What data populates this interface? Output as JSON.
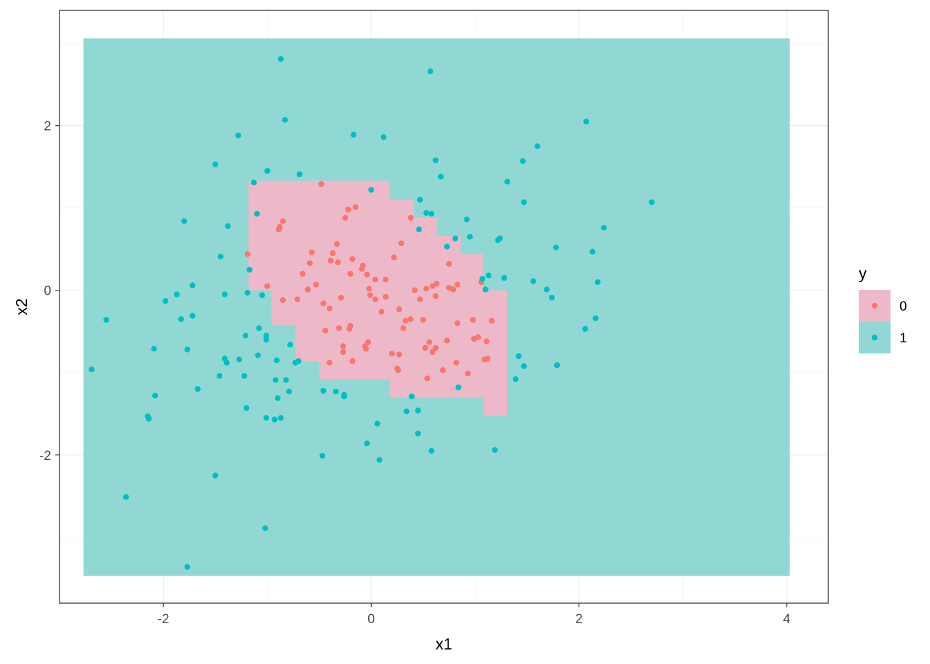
{
  "chart_data": {
    "type": "scatter",
    "title": "",
    "xlabel": "x1",
    "ylabel": "x2",
    "xlim": [
      -3.0,
      4.4
    ],
    "ylim": [
      -3.8,
      3.4
    ],
    "x_ticks": [
      -2,
      0,
      2,
      4
    ],
    "y_ticks": [
      -2,
      0,
      2
    ],
    "x_tick_labels": [
      "-2",
      "0",
      "2",
      "4"
    ],
    "y_tick_labels": [
      "-2",
      "0",
      "2"
    ],
    "grid": true,
    "legend": {
      "title": "y",
      "position": "right",
      "entries": [
        {
          "label": "0",
          "point_color": "#F8766D",
          "fill_color": "#EDB8C8"
        },
        {
          "label": "1",
          "point_color": "#00BFC4",
          "fill_color": "#91D8D4"
        }
      ]
    },
    "background_region": {
      "class": "1",
      "x": [
        -2.77,
        4.03
      ],
      "y": [
        -3.47,
        3.06
      ],
      "color": "#91D8D4"
    },
    "decision_region_class0": {
      "class": "0",
      "color": "#EDB8C8",
      "boundary": [
        [
          -1.18,
          1.33
        ],
        [
          0.18,
          1.33
        ],
        [
          0.18,
          1.1
        ],
        [
          0.41,
          1.1
        ],
        [
          0.41,
          0.88
        ],
        [
          0.63,
          0.88
        ],
        [
          0.63,
          0.66
        ],
        [
          0.86,
          0.66
        ],
        [
          0.86,
          0.44
        ],
        [
          1.08,
          0.44
        ],
        [
          1.08,
          0.0
        ],
        [
          1.31,
          0.0
        ],
        [
          1.31,
          -1.52
        ],
        [
          1.08,
          -1.52
        ],
        [
          1.08,
          -1.3
        ],
        [
          0.18,
          -1.3
        ],
        [
          0.18,
          -1.08
        ],
        [
          -0.5,
          -1.08
        ],
        [
          -0.5,
          -0.86
        ],
        [
          -0.73,
          -0.86
        ],
        [
          -0.73,
          -0.42
        ],
        [
          -0.96,
          -0.42
        ],
        [
          -0.96,
          0.0
        ],
        [
          -1.18,
          0.0
        ]
      ]
    },
    "series": [
      {
        "name": "0",
        "color": "#F8766D",
        "points": [
          [
            -0.48,
            1.29
          ],
          [
            -0.85,
            0.84
          ],
          [
            -0.88,
            0.77
          ],
          [
            -0.89,
            0.74
          ],
          [
            -0.22,
            0.98
          ],
          [
            -0.15,
            1.01
          ],
          [
            -0.25,
            0.88
          ],
          [
            0.38,
            0.88
          ],
          [
            -0.33,
            0.56
          ],
          [
            0.29,
            0.57
          ],
          [
            -1.19,
            0.44
          ],
          [
            -0.57,
            0.46
          ],
          [
            -0.37,
            0.45
          ],
          [
            -0.59,
            0.33
          ],
          [
            -0.39,
            0.36
          ],
          [
            -0.32,
            0.34
          ],
          [
            -0.18,
            0.38
          ],
          [
            0.22,
            0.4
          ],
          [
            -0.08,
            0.3
          ],
          [
            -0.09,
            0.26
          ],
          [
            -0.2,
            0.2
          ],
          [
            -0.66,
            0.2
          ],
          [
            -0.04,
            0.19
          ],
          [
            0.75,
            0.32
          ],
          [
            -0.53,
            0.07
          ],
          [
            -0.61,
            0.01
          ],
          [
            -1.0,
            0.05
          ],
          [
            -0.02,
            0.02
          ],
          [
            0.04,
            0.13
          ],
          [
            0.14,
            0.13
          ],
          [
            0.42,
            0.0
          ],
          [
            0.53,
            0.02
          ],
          [
            0.59,
            0.05
          ],
          [
            0.63,
            0.08
          ],
          [
            0.75,
            0.03
          ],
          [
            0.79,
            0.01
          ],
          [
            0.83,
            0.07
          ],
          [
            -0.01,
            -0.06
          ],
          [
            0.04,
            -0.11
          ],
          [
            0.14,
            -0.08
          ],
          [
            0.47,
            -0.11
          ],
          [
            0.62,
            -0.07
          ],
          [
            -0.71,
            -0.11
          ],
          [
            -0.85,
            -0.12
          ],
          [
            -0.29,
            -0.09
          ],
          [
            -0.46,
            -0.16
          ],
          [
            -0.4,
            -0.22
          ],
          [
            0.27,
            -0.23
          ],
          [
            0.1,
            -0.26
          ],
          [
            -0.2,
            -0.43
          ],
          [
            -0.21,
            -0.47
          ],
          [
            -0.44,
            -0.49
          ],
          [
            -0.31,
            -0.46
          ],
          [
            0.33,
            -0.37
          ],
          [
            0.38,
            -0.35
          ],
          [
            0.5,
            -0.36
          ],
          [
            0.31,
            -0.46
          ],
          [
            0.83,
            -0.4
          ],
          [
            0.98,
            -0.36
          ],
          [
            1.16,
            -0.37
          ],
          [
            0.56,
            -0.63
          ],
          [
            0.73,
            -0.61
          ],
          [
            0.99,
            -0.59
          ],
          [
            1.03,
            -0.57
          ],
          [
            1.11,
            -0.62
          ],
          [
            -0.03,
            -0.63
          ],
          [
            -0.06,
            -0.68
          ],
          [
            -0.27,
            -0.68
          ],
          [
            -0.05,
            -0.71
          ],
          [
            0.52,
            -0.7
          ],
          [
            0.59,
            -0.75
          ],
          [
            0.62,
            -0.7
          ],
          [
            -0.27,
            -0.75
          ],
          [
            0.2,
            -0.77
          ],
          [
            0.27,
            -0.78
          ],
          [
            -0.18,
            -0.86
          ],
          [
            -0.4,
            -0.88
          ],
          [
            1.12,
            -0.83
          ],
          [
            1.09,
            -0.84
          ],
          [
            0.82,
            -0.88
          ],
          [
            0.25,
            -0.95
          ],
          [
            0.26,
            -0.97
          ],
          [
            0.69,
            -0.97
          ],
          [
            0.93,
            -1.01
          ],
          [
            0.54,
            -1.07
          ],
          [
            1.06,
            0.1
          ]
        ]
      },
      {
        "name": "1",
        "color": "#00BFC4",
        "points": [
          [
            -0.87,
            2.81
          ],
          [
            0.57,
            2.66
          ],
          [
            -0.83,
            2.07
          ],
          [
            2.07,
            2.05
          ],
          [
            -1.28,
            1.88
          ],
          [
            -0.17,
            1.89
          ],
          [
            0.12,
            1.86
          ],
          [
            1.6,
            1.75
          ],
          [
            -1.5,
            1.53
          ],
          [
            -1.0,
            1.45
          ],
          [
            0.62,
            1.58
          ],
          [
            1.46,
            1.57
          ],
          [
            -0.69,
            1.41
          ],
          [
            0.67,
            1.38
          ],
          [
            -1.13,
            1.31
          ],
          [
            1.31,
            1.32
          ],
          [
            0.0,
            1.22
          ],
          [
            0.47,
            1.1
          ],
          [
            1.47,
            1.07
          ],
          [
            2.7,
            1.07
          ],
          [
            -1.1,
            0.93
          ],
          [
            0.53,
            0.94
          ],
          [
            0.58,
            0.93
          ],
          [
            -1.8,
            0.84
          ],
          [
            -1.38,
            0.78
          ],
          [
            0.92,
            0.86
          ],
          [
            2.24,
            0.76
          ],
          [
            0.46,
            0.74
          ],
          [
            1.24,
            0.63
          ],
          [
            1.22,
            0.61
          ],
          [
            0.81,
            0.63
          ],
          [
            0.95,
            0.65
          ],
          [
            0.73,
            0.53
          ],
          [
            1.78,
            0.52
          ],
          [
            2.13,
            0.47
          ],
          [
            -1.45,
            0.41
          ],
          [
            -1.17,
            0.25
          ],
          [
            1.07,
            0.14
          ],
          [
            1.13,
            0.18
          ],
          [
            1.28,
            0.15
          ],
          [
            1.56,
            0.11
          ],
          [
            2.18,
            0.1
          ],
          [
            -1.72,
            0.06
          ],
          [
            1.69,
            0.01
          ],
          [
            1.1,
            0.01
          ],
          [
            -1.87,
            -0.05
          ],
          [
            -1.41,
            -0.05
          ],
          [
            -1.19,
            -0.03
          ],
          [
            -1.05,
            -0.06
          ],
          [
            -1.98,
            -0.13
          ],
          [
            1.74,
            -0.09
          ],
          [
            -1.83,
            -0.35
          ],
          [
            -1.72,
            -0.31
          ],
          [
            2.16,
            -0.34
          ],
          [
            -2.55,
            -0.36
          ],
          [
            -1.08,
            -0.46
          ],
          [
            2.06,
            -0.47
          ],
          [
            -1.21,
            -0.55
          ],
          [
            -1.01,
            -0.55
          ],
          [
            -1.01,
            -0.6
          ],
          [
            -0.78,
            -0.66
          ],
          [
            -2.09,
            -0.71
          ],
          [
            -1.77,
            -0.72
          ],
          [
            -1.09,
            -0.79
          ],
          [
            1.42,
            -0.8
          ],
          [
            -1.41,
            -0.83
          ],
          [
            -1.27,
            -0.84
          ],
          [
            -1.39,
            -0.88
          ],
          [
            -0.91,
            -0.85
          ],
          [
            -0.73,
            -0.88
          ],
          [
            -0.7,
            -0.86
          ],
          [
            1.47,
            -0.92
          ],
          [
            1.79,
            -0.91
          ],
          [
            -2.69,
            -0.96
          ],
          [
            -1.46,
            -1.04
          ],
          [
            -1.22,
            -1.04
          ],
          [
            -0.92,
            -1.09
          ],
          [
            -0.82,
            -1.09
          ],
          [
            1.39,
            -1.08
          ],
          [
            0.84,
            -1.18
          ],
          [
            -1.67,
            -1.2
          ],
          [
            -0.79,
            -1.23
          ],
          [
            -0.46,
            -1.22
          ],
          [
            -0.34,
            -1.23
          ],
          [
            -0.26,
            -1.27
          ],
          [
            -2.08,
            -1.28
          ],
          [
            -0.26,
            -1.29
          ],
          [
            0.39,
            -1.29
          ],
          [
            -0.9,
            -1.31
          ],
          [
            -1.2,
            -1.43
          ],
          [
            0.34,
            -1.47
          ],
          [
            0.45,
            -1.46
          ],
          [
            -2.15,
            -1.53
          ],
          [
            -2.14,
            -1.56
          ],
          [
            -1.01,
            -1.55
          ],
          [
            -0.93,
            -1.57
          ],
          [
            -0.87,
            -1.55
          ],
          [
            0.06,
            -1.62
          ],
          [
            0.45,
            -1.74
          ],
          [
            -0.04,
            -1.86
          ],
          [
            0.58,
            -1.95
          ],
          [
            1.19,
            -1.94
          ],
          [
            -0.47,
            -2.01
          ],
          [
            0.08,
            -2.06
          ],
          [
            -1.5,
            -2.25
          ],
          [
            -2.36,
            -2.51
          ],
          [
            -1.02,
            -2.89
          ],
          [
            -1.77,
            -3.36
          ]
        ]
      }
    ]
  }
}
